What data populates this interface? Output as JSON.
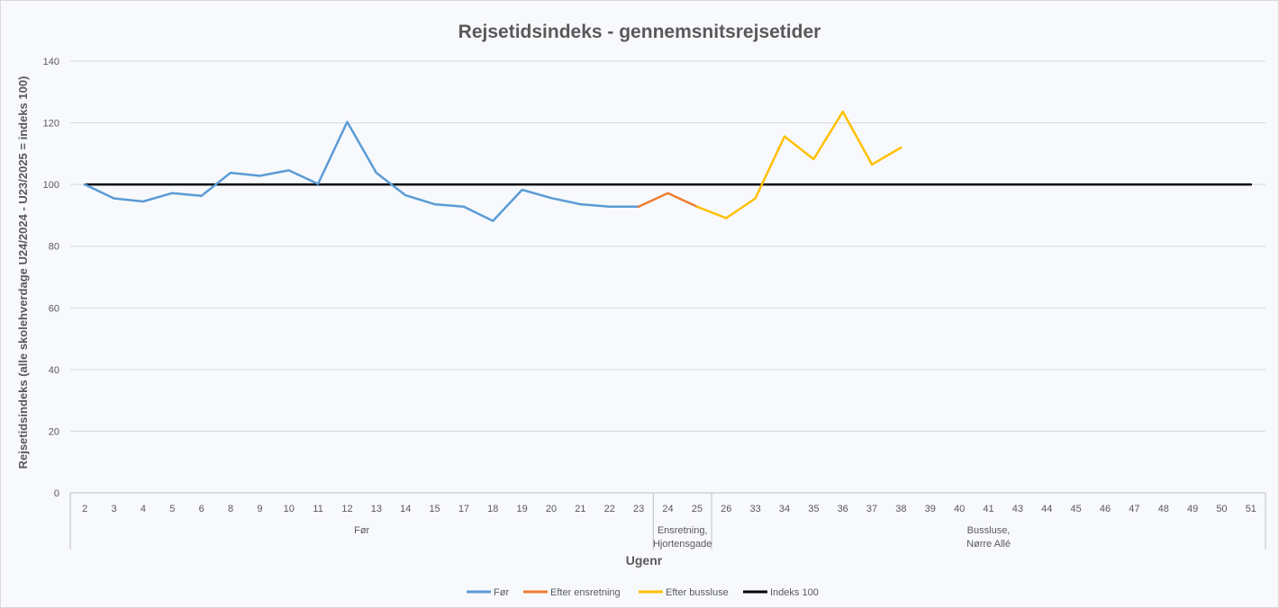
{
  "chart_data": {
    "type": "line",
    "title": "Rejsetidsindeks - gennemsnitsrejsetider",
    "xlabel": "Ugenr",
    "ylabel": "Rejsetidsindeks (alle skolehverdage U24/2024 - U23/2025 = indeks 100)",
    "ylim": [
      0,
      140
    ],
    "yticks": [
      0,
      20,
      40,
      60,
      80,
      100,
      120,
      140
    ],
    "grid": true,
    "legend_position": "bottom",
    "categories": [
      "2",
      "3",
      "4",
      "5",
      "6",
      "8",
      "9",
      "10",
      "11",
      "12",
      "13",
      "14",
      "15",
      "17",
      "18",
      "19",
      "20",
      "21",
      "22",
      "23",
      "24",
      "25",
      "26",
      "33",
      "34",
      "35",
      "36",
      "37",
      "38",
      "39",
      "40",
      "41",
      "43",
      "44",
      "45",
      "46",
      "47",
      "48",
      "49",
      "50",
      "51"
    ],
    "groups": [
      {
        "label": "Før",
        "start": 0,
        "end": 19
      },
      {
        "label": "Ensretning, Hjortensgade",
        "start": 20,
        "end": 21
      },
      {
        "label": "Bussluse, Nørre Allé",
        "start": 22,
        "end": 40
      }
    ],
    "series": [
      {
        "name": "Før",
        "color": "#5b9bd5",
        "values": [
          100,
          95.5,
          94.5,
          97.2,
          96.3,
          103.8,
          102.8,
          104.6,
          100.2,
          120.3,
          103.8,
          96.5,
          93.6,
          92.8,
          88.2,
          98.3,
          95.6,
          93.6,
          92.8,
          92.8,
          null,
          null,
          null,
          null,
          null,
          null,
          null,
          null,
          null,
          null,
          null,
          null,
          null,
          null,
          null,
          null,
          null,
          null,
          null,
          null,
          null
        ]
      },
      {
        "name": "Efter ensretning",
        "color": "#ed7d31",
        "values": [
          null,
          null,
          null,
          null,
          null,
          null,
          null,
          null,
          null,
          null,
          null,
          null,
          null,
          null,
          null,
          null,
          null,
          null,
          null,
          92.8,
          97.2,
          92.8,
          null,
          null,
          null,
          null,
          null,
          null,
          null,
          null,
          null,
          null,
          null,
          null,
          null,
          null,
          null,
          null,
          null,
          null,
          null
        ]
      },
      {
        "name": "Efter bussluse",
        "color": "#ffc000",
        "values": [
          null,
          null,
          null,
          null,
          null,
          null,
          null,
          null,
          null,
          null,
          null,
          null,
          null,
          null,
          null,
          null,
          null,
          null,
          null,
          null,
          null,
          92.8,
          89.1,
          95.5,
          115.6,
          108.2,
          123.6,
          106.5,
          112.0,
          null,
          null,
          null,
          null,
          null,
          null,
          null,
          null,
          null,
          null,
          null,
          null
        ]
      },
      {
        "name": "Indeks 100",
        "color": "#000000",
        "values": [
          100,
          100,
          100,
          100,
          100,
          100,
          100,
          100,
          100,
          100,
          100,
          100,
          100,
          100,
          100,
          100,
          100,
          100,
          100,
          100,
          100,
          100,
          100,
          100,
          100,
          100,
          100,
          100,
          100,
          100,
          100,
          100,
          100,
          100,
          100,
          100,
          100,
          100,
          100,
          100,
          100
        ]
      }
    ]
  }
}
